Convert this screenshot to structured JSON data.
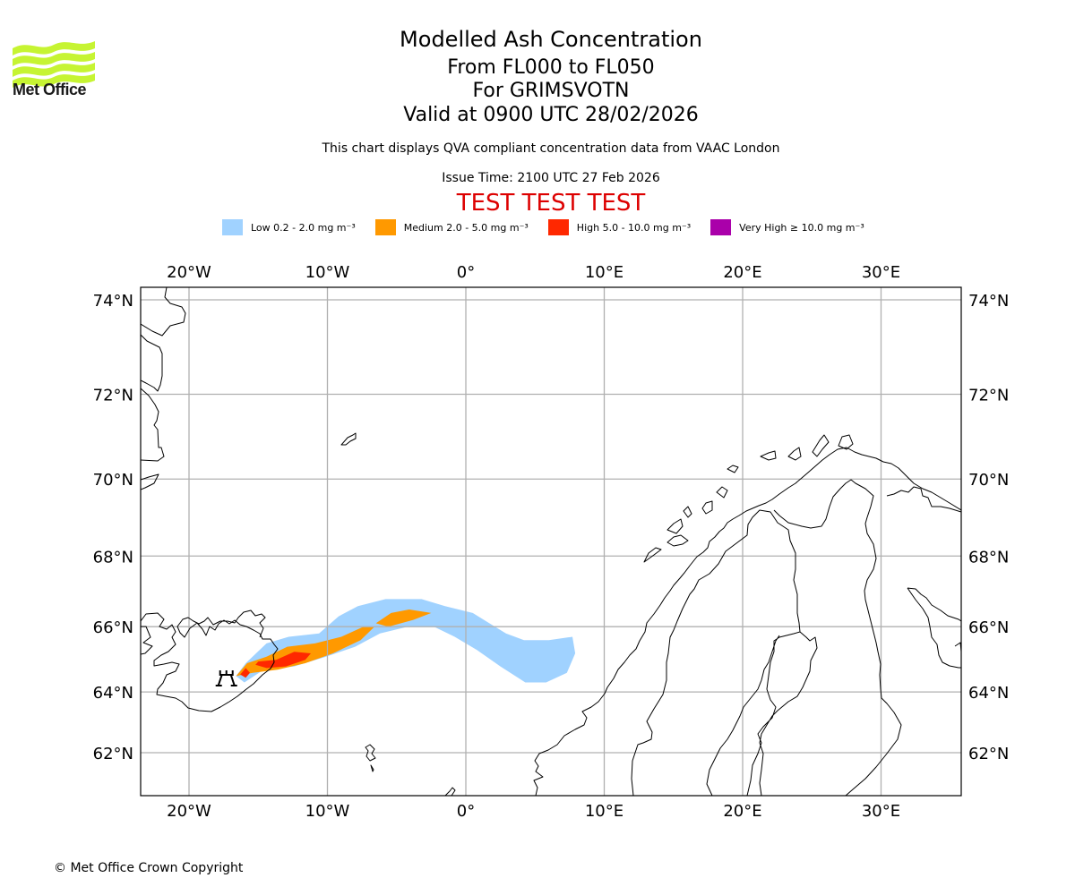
{
  "header": {
    "logo_text": "Met Office",
    "title": "Modelled Ash Concentration",
    "flight_levels": "From FL000 to FL050",
    "volcano_line": "For GRIMSVOTN",
    "valid_time": "Valid at 0900 UTC 28/02/2026",
    "note": "This chart displays QVA compliant concentration data from VAAC London",
    "issue_time": "Issue Time: 2100 UTC 27 Feb 2026",
    "test_banner": "TEST TEST TEST"
  },
  "colors": {
    "logo": "#c6f432",
    "test_banner": "#dd0000",
    "gridline": "#b0b0b0",
    "coastline": "#000000"
  },
  "legend": [
    {
      "label": "Low 0.2 - 2.0 mg m⁻³",
      "color": "#a0d2ff"
    },
    {
      "label": "Medium 2.0 - 5.0 mg m⁻³",
      "color": "#ff9900"
    },
    {
      "label": "High 5.0 - 10.0 mg m⁻³",
      "color": "#ff2800"
    },
    {
      "label": "Very High ≥ 10.0 mg m⁻³",
      "color": "#aa00aa"
    }
  ],
  "footer": {
    "copyright": "© Met Office Crown Copyright"
  },
  "chart_data": {
    "type": "heatmap",
    "title": "Modelled Ash Concentration",
    "projection": "mercator",
    "extent": {
      "lon": [
        -23.5,
        35.8
      ],
      "lat": [
        60.9,
        74.3
      ]
    },
    "grid": true,
    "x_ticks": [
      {
        "value": -20,
        "label": "20°W"
      },
      {
        "value": -10,
        "label": "10°W"
      },
      {
        "value": 0,
        "label": "0°"
      },
      {
        "value": 10,
        "label": "10°E"
      },
      {
        "value": 20,
        "label": "20°E"
      },
      {
        "value": 30,
        "label": "30°E"
      }
    ],
    "y_ticks": [
      {
        "value": 74,
        "label": "74°N"
      },
      {
        "value": 72,
        "label": "72°N"
      },
      {
        "value": 70,
        "label": "70°N"
      },
      {
        "value": 68,
        "label": "68°N"
      },
      {
        "value": 66,
        "label": "66°N"
      },
      {
        "value": 64,
        "label": "64°N"
      },
      {
        "value": 62,
        "label": "62°N"
      }
    ],
    "volcano": {
      "name": "GRIMSVOTN",
      "lon": -17.3,
      "lat": 64.4,
      "symbol": "volcano-icon"
    },
    "ash_regions": [
      {
        "level": "Low",
        "color": "#a0d2ff",
        "polygon": [
          [
            -16.6,
            64.5
          ],
          [
            -15.9,
            64.9
          ],
          [
            -14.4,
            65.5
          ],
          [
            -12.8,
            65.7
          ],
          [
            -10.6,
            65.8
          ],
          [
            -9.2,
            66.3
          ],
          [
            -7.8,
            66.6
          ],
          [
            -5.8,
            66.8
          ],
          [
            -3.2,
            66.8
          ],
          [
            -1.5,
            66.6
          ],
          [
            0.5,
            66.4
          ],
          [
            1.7,
            66.1
          ],
          [
            2.9,
            65.8
          ],
          [
            4.2,
            65.6
          ],
          [
            6.0,
            65.6
          ],
          [
            7.7,
            65.7
          ],
          [
            7.9,
            65.2
          ],
          [
            7.3,
            64.6
          ],
          [
            5.8,
            64.3
          ],
          [
            4.3,
            64.3
          ],
          [
            2.5,
            64.8
          ],
          [
            0.8,
            65.3
          ],
          [
            -0.8,
            65.7
          ],
          [
            -2.3,
            66.0
          ],
          [
            -4.2,
            66.0
          ],
          [
            -6.2,
            65.8
          ],
          [
            -8.0,
            65.4
          ],
          [
            -10.1,
            65.1
          ],
          [
            -12.4,
            64.8
          ],
          [
            -14.6,
            64.7
          ],
          [
            -16.0,
            64.3
          ]
        ]
      },
      {
        "level": "Medium",
        "color": "#ff9900",
        "polygon": [
          [
            -16.6,
            64.5
          ],
          [
            -15.8,
            64.9
          ],
          [
            -14.4,
            65.1
          ],
          [
            -12.9,
            65.4
          ],
          [
            -10.9,
            65.5
          ],
          [
            -9.0,
            65.7
          ],
          [
            -7.4,
            66.0
          ],
          [
            -6.6,
            66.0
          ],
          [
            -7.6,
            65.6
          ],
          [
            -9.6,
            65.2
          ],
          [
            -11.6,
            64.9
          ],
          [
            -13.6,
            64.7
          ],
          [
            -15.4,
            64.6
          ]
        ]
      },
      {
        "level": "Medium",
        "color": "#ff9900",
        "polygon": [
          [
            -6.5,
            66.1
          ],
          [
            -5.4,
            66.4
          ],
          [
            -4.1,
            66.5
          ],
          [
            -2.5,
            66.4
          ],
          [
            -3.8,
            66.2
          ],
          [
            -5.6,
            66.0
          ]
        ]
      },
      {
        "level": "High",
        "color": "#ff2800",
        "polygon": [
          [
            -15.0,
            64.95
          ],
          [
            -13.7,
            65.0
          ],
          [
            -12.4,
            65.25
          ],
          [
            -11.2,
            65.2
          ],
          [
            -11.6,
            65.0
          ],
          [
            -13.0,
            64.8
          ],
          [
            -14.4,
            64.75
          ],
          [
            -15.2,
            64.85
          ]
        ]
      },
      {
        "level": "High",
        "color": "#ff2800",
        "polygon": [
          [
            -16.3,
            64.55
          ],
          [
            -15.9,
            64.75
          ],
          [
            -15.6,
            64.6
          ],
          [
            -15.9,
            64.45
          ]
        ]
      }
    ]
  }
}
